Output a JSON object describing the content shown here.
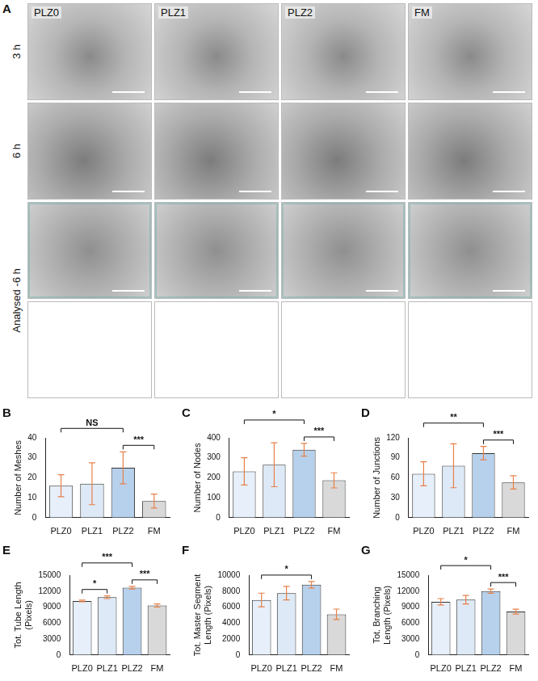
{
  "panel_a": {
    "letter": "A",
    "columns": [
      "PLZ0",
      "PLZ1",
      "PLZ2",
      "FM"
    ],
    "rows": [
      "3 h",
      "6 h",
      "Analysed -6 h"
    ]
  },
  "chart_data": [
    {
      "type": "bar",
      "panel": "B",
      "y_label": "Number of Meshes",
      "categories": [
        "PLZ0",
        "PLZ1",
        "PLZ2",
        "FM"
      ],
      "values": [
        16,
        17,
        25,
        8.3
      ],
      "errors": [
        5.5,
        10.5,
        8,
        3.5
      ],
      "colors": [
        "#e6effa",
        "#dde9f6",
        "#b7d1ec",
        "#d9d9d9"
      ],
      "ylim": [
        0,
        40
      ],
      "yticks": [
        0,
        10,
        20,
        30,
        40
      ],
      "grid": false,
      "significance": [
        {
          "from": "PLZ0",
          "to": "PLZ2",
          "label": "NS"
        },
        {
          "from": "PLZ2",
          "to": "FM",
          "label": "***"
        }
      ]
    },
    {
      "type": "bar",
      "panel": "C",
      "y_label": "Number of Nodes",
      "categories": [
        "PLZ0",
        "PLZ1",
        "PLZ2",
        "FM"
      ],
      "values": [
        232,
        265,
        340,
        187
      ],
      "errors": [
        68,
        110,
        32,
        38
      ],
      "colors": [
        "#e6effa",
        "#dde9f6",
        "#b7d1ec",
        "#d9d9d9"
      ],
      "ylim": [
        0,
        400
      ],
      "yticks": [
        0,
        100,
        200,
        300,
        400
      ],
      "grid": false,
      "significance": [
        {
          "from": "PLZ0",
          "to": "PLZ2",
          "label": "*"
        },
        {
          "from": "PLZ2",
          "to": "FM",
          "label": "***"
        }
      ]
    },
    {
      "type": "bar",
      "panel": "D",
      "y_label": "Number of Junctions",
      "categories": [
        "PLZ0",
        "PLZ1",
        "PLZ2",
        "FM"
      ],
      "values": [
        66,
        78,
        97,
        53
      ],
      "errors": [
        18,
        33,
        10,
        10
      ],
      "colors": [
        "#e6effa",
        "#dde9f6",
        "#b7d1ec",
        "#d9d9d9"
      ],
      "ylim": [
        0,
        120
      ],
      "yticks": [
        0,
        30,
        60,
        90,
        120
      ],
      "grid": false,
      "significance": [
        {
          "from": "PLZ0",
          "to": "PLZ2",
          "label": "**"
        },
        {
          "from": "PLZ2",
          "to": "FM",
          "label": "***"
        }
      ]
    },
    {
      "type": "bar",
      "panel": "E",
      "y_label": [
        "Tot. Tube Length",
        "(Pixels)"
      ],
      "categories": [
        "PLZ0",
        "PLZ1",
        "PLZ2",
        "FM"
      ],
      "values": [
        10150,
        10850,
        12650,
        9300
      ],
      "errors": [
        150,
        250,
        250,
        300
      ],
      "colors": [
        "#e6effa",
        "#dde9f6",
        "#b7d1ec",
        "#d9d9d9"
      ],
      "ylim": [
        0,
        15000
      ],
      "yticks": [
        0,
        3000,
        6000,
        9000,
        12000,
        15000
      ],
      "grid": false,
      "significance": [
        {
          "from": "PLZ0",
          "to": "PLZ1",
          "label": "*"
        },
        {
          "from": "PLZ0",
          "to": "PLZ2",
          "label": "***"
        },
        {
          "from": "PLZ2",
          "to": "FM",
          "label": "***"
        }
      ]
    },
    {
      "type": "bar",
      "panel": "F",
      "y_label": [
        "Tot. Master Segment",
        "Length (Pixels)"
      ],
      "categories": [
        "PLZ0",
        "PLZ1",
        "PLZ2",
        "FM"
      ],
      "values": [
        6900,
        7750,
        8800,
        5100
      ],
      "errors": [
        850,
        850,
        400,
        650
      ],
      "colors": [
        "#e6effa",
        "#dde9f6",
        "#b7d1ec",
        "#d9d9d9"
      ],
      "ylim": [
        0,
        10000
      ],
      "yticks": [
        0,
        2000,
        4000,
        6000,
        8000,
        10000
      ],
      "grid": false,
      "significance": [
        {
          "from": "PLZ0",
          "to": "PLZ2",
          "label": "*"
        }
      ]
    },
    {
      "type": "bar",
      "panel": "G",
      "y_label": [
        "Tot. Branching",
        "Length (Pixels)"
      ],
      "categories": [
        "PLZ0",
        "PLZ1",
        "PLZ2",
        "FM"
      ],
      "values": [
        10000,
        10400,
        12000,
        8150
      ],
      "errors": [
        600,
        800,
        400,
        450
      ],
      "colors": [
        "#e6effa",
        "#dde9f6",
        "#b7d1ec",
        "#d9d9d9"
      ],
      "ylim": [
        0,
        15000
      ],
      "yticks": [
        0,
        3000,
        6000,
        9000,
        12000,
        15000
      ],
      "grid": false,
      "significance": [
        {
          "from": "PLZ0",
          "to": "PLZ2",
          "label": "*"
        },
        {
          "from": "PLZ2",
          "to": "FM",
          "label": "***"
        }
      ]
    }
  ]
}
